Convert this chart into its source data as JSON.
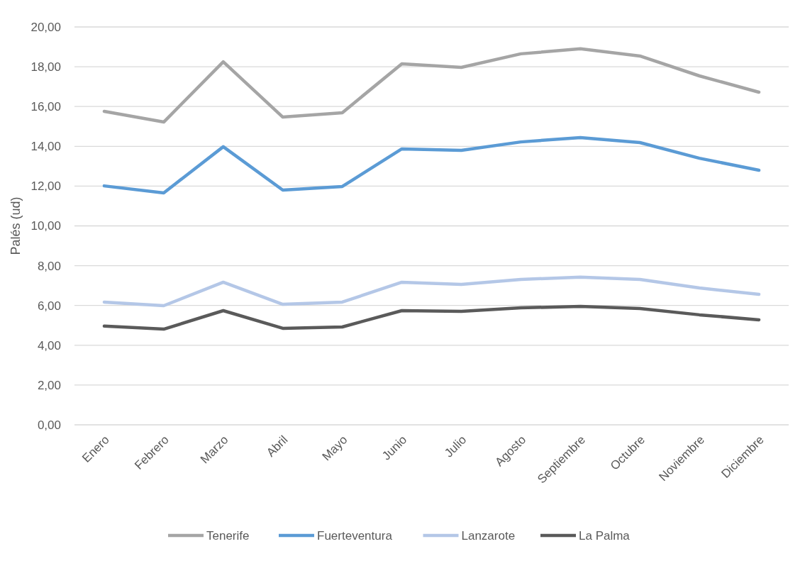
{
  "chart_data": {
    "type": "line",
    "ylabel": "Palés (ud)",
    "categories": [
      "Enero",
      "Febrero",
      "Marzo",
      "Abril",
      "Mayo",
      "Junio",
      "Julio",
      "Agosto",
      "Septiembre",
      "Octubre",
      "Noviembre",
      "Diciembre"
    ],
    "series": [
      {
        "name": "Tenerife",
        "color": "#a5a5a5",
        "values": [
          15.76,
          15.22,
          18.25,
          15.47,
          15.69,
          18.15,
          17.97,
          18.65,
          18.9,
          18.54,
          17.54,
          16.72
        ]
      },
      {
        "name": "Fuerteventura",
        "color": "#5b9bd5",
        "values": [
          12.01,
          11.66,
          13.98,
          11.8,
          11.98,
          13.87,
          13.8,
          14.22,
          14.44,
          14.19,
          13.4,
          12.8
        ]
      },
      {
        "name": "Lanzarote",
        "color": "#b4c7e7",
        "values": [
          6.17,
          5.99,
          7.17,
          6.06,
          6.17,
          7.17,
          7.06,
          7.31,
          7.42,
          7.31,
          6.88,
          6.56
        ]
      },
      {
        "name": "La Palma",
        "color": "#5a5a5a",
        "values": [
          4.96,
          4.81,
          5.74,
          4.85,
          4.92,
          5.74,
          5.7,
          5.88,
          5.95,
          5.85,
          5.53,
          5.28
        ]
      }
    ],
    "ylim": [
      0,
      20
    ],
    "yticks": [
      {
        "value": 0,
        "label": "0,00"
      },
      {
        "value": 2,
        "label": "2,00"
      },
      {
        "value": 4,
        "label": "4,00"
      },
      {
        "value": 6,
        "label": "6,00"
      },
      {
        "value": 8,
        "label": "8,00"
      },
      {
        "value": 10,
        "label": "10,00"
      },
      {
        "value": 12,
        "label": "12,00"
      },
      {
        "value": 14,
        "label": "14,00"
      },
      {
        "value": 16,
        "label": "16,00"
      },
      {
        "value": 18,
        "label": "18,00"
      },
      {
        "value": 20,
        "label": "20,00"
      }
    ],
    "grid": "y",
    "legend": "bottom",
    "marker": "none",
    "line_style": "solid"
  }
}
